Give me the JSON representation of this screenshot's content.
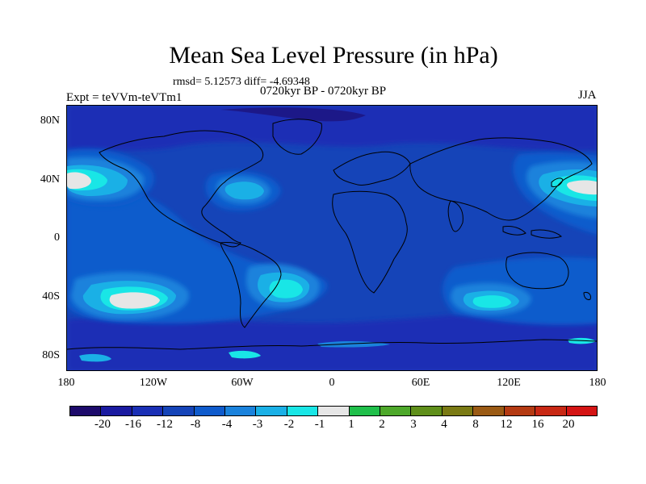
{
  "title": "Mean Sea Level Pressure (in hPa)",
  "stats_text": "rmsd= 5.12573 diff= -4.69348",
  "period_text": "0720kyr BP - 0720kyr BP",
  "expt_text": "Expt = teVVm-teVTm1",
  "season_text": "JJA",
  "map": {
    "y_axis_labels": [
      "80N",
      "40N",
      "0",
      "40S",
      "80S"
    ],
    "x_axis_labels": [
      "180",
      "120W",
      "60W",
      "0",
      "60E",
      "120E",
      "180"
    ],
    "anomaly_regions": [
      {
        "label": "north-pacific-high-east",
        "level": "-1 to 1"
      },
      {
        "label": "north-pacific-high-west",
        "level": "-1 to 1"
      },
      {
        "label": "south-pacific-high",
        "level": "-1 to 1"
      },
      {
        "label": "north-atlantic",
        "level": "-2 to -1"
      },
      {
        "label": "south-atlantic",
        "level": "-2 to -1"
      },
      {
        "label": "south-indian",
        "level": "-2 to -1"
      }
    ]
  },
  "colorbar": {
    "labels": [
      "-20",
      "-16",
      "-12",
      "-8",
      "-4",
      "-3",
      "-2",
      "-1",
      "1",
      "2",
      "3",
      "4",
      "8",
      "12",
      "16",
      "20"
    ],
    "colors": [
      "#1d0a6b",
      "#1a1aa0",
      "#1a2fb5",
      "#1544b8",
      "#0f5bcc",
      "#1a82dc",
      "#1ab0e6",
      "#19e6e6",
      "#e6e6e6",
      "#1fbf4a",
      "#4da82a",
      "#5f8f1a",
      "#7a7a14",
      "#9a5a14",
      "#b43a12",
      "#c82814",
      "#d41414"
    ]
  }
}
